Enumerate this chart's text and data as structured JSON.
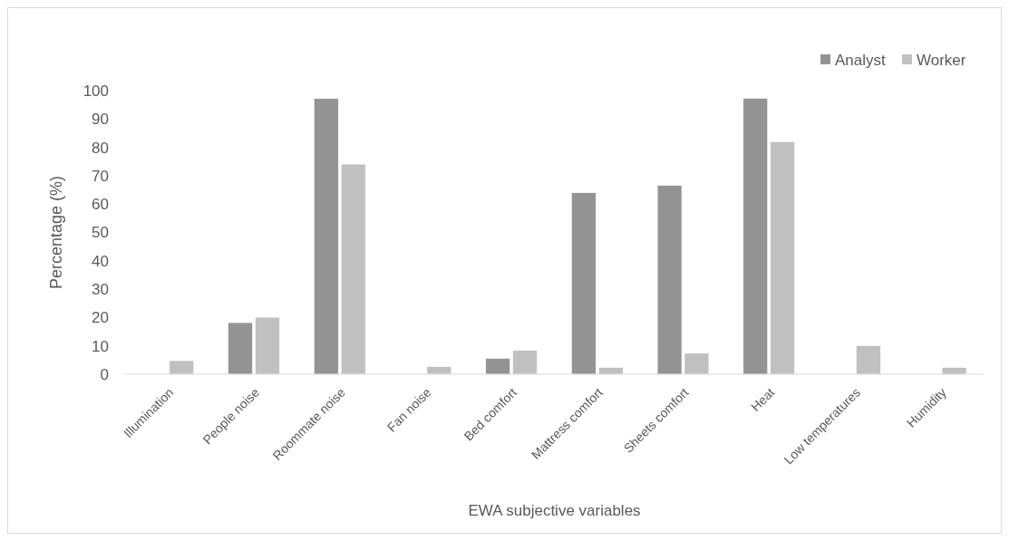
{
  "chart_data": {
    "type": "bar",
    "xlabel": "EWA subjective variables",
    "ylabel": "Percentage (%)",
    "categories": [
      "Illumination",
      "People noise",
      "Roommate noise",
      "Fan noise",
      "Bed comfort",
      "Mattress comfort",
      "Sheets comfort",
      "Heat",
      "Low temperatures",
      "Humidity"
    ],
    "series": [
      {
        "name": "Analyst",
        "color": "#939393",
        "values": [
          0,
          18.2,
          97.2,
          0,
          5.6,
          64,
          66.6,
          97.3,
          0,
          0
        ]
      },
      {
        "name": "Worker",
        "color": "#c0c0c0",
        "values": [
          4.8,
          20.1,
          74.1,
          2.7,
          8.4,
          2.4,
          7.4,
          82,
          10.1,
          2.4
        ]
      }
    ],
    "ylim": [
      0,
      100
    ],
    "yticks": [
      0,
      10,
      20,
      30,
      40,
      50,
      60,
      70,
      80,
      90,
      100
    ],
    "grid": false,
    "legend": "top right"
  }
}
